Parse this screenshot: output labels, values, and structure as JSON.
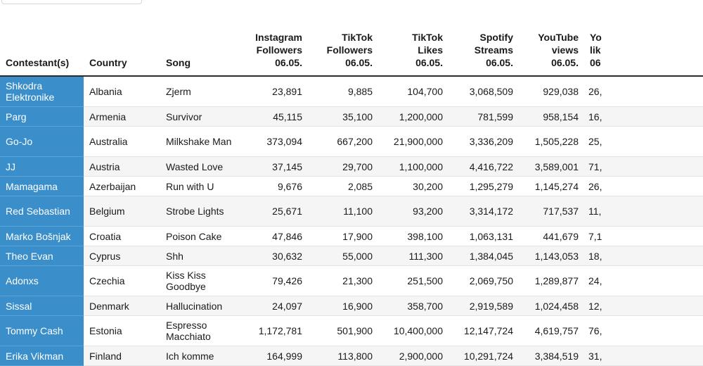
{
  "table": {
    "headers": {
      "contestant": "Contestant(s)",
      "country": "Country",
      "song": "Song",
      "instagram": [
        "Instagram",
        "Followers",
        "06.05."
      ],
      "tiktok_followers": [
        "TikTok",
        "Followers",
        "06.05."
      ],
      "tiktok_likes": [
        "TikTok",
        "Likes",
        "06.05."
      ],
      "spotify": [
        "Spotify",
        "Streams",
        "06.05."
      ],
      "youtube_views": [
        "YouTube",
        "views",
        "06.05."
      ],
      "youtube_likes": [
        "Yo",
        "lik",
        "06"
      ]
    },
    "rows": [
      {
        "contestant": "Shkodra Elektronike",
        "country": "Albania",
        "song": "Zjerm",
        "instagram": "23,891",
        "tiktok_followers": "9,885",
        "tiktok_likes": "104,700",
        "spotify": "3,068,509",
        "youtube_views": "929,038",
        "youtube_likes": "26,"
      },
      {
        "contestant": "Parg",
        "country": "Armenia",
        "song": "Survivor",
        "instagram": "45,115",
        "tiktok_followers": "35,100",
        "tiktok_likes": "1,200,000",
        "spotify": "781,599",
        "youtube_views": "958,154",
        "youtube_likes": "16,"
      },
      {
        "contestant": "Go-Jo",
        "country": "Australia",
        "song": "Milkshake Man",
        "instagram": "373,094",
        "tiktok_followers": "667,200",
        "tiktok_likes": "21,900,000",
        "spotify": "3,336,209",
        "youtube_views": "1,505,228",
        "youtube_likes": "25,"
      },
      {
        "contestant": "JJ",
        "country": "Austria",
        "song": "Wasted Love",
        "instagram": "37,145",
        "tiktok_followers": "29,700",
        "tiktok_likes": "1,100,000",
        "spotify": "4,416,722",
        "youtube_views": "3,589,001",
        "youtube_likes": "71,"
      },
      {
        "contestant": "Mamagama",
        "country": "Azerbaijan",
        "song": "Run with U",
        "instagram": "9,676",
        "tiktok_followers": "2,085",
        "tiktok_likes": "30,200",
        "spotify": "1,295,279",
        "youtube_views": "1,145,274",
        "youtube_likes": "26,"
      },
      {
        "contestant": "Red Sebastian",
        "country": "Belgium",
        "song": "Strobe Lights",
        "instagram": "25,671",
        "tiktok_followers": "11,100",
        "tiktok_likes": "93,200",
        "spotify": "3,314,172",
        "youtube_views": "717,537",
        "youtube_likes": "11,"
      },
      {
        "contestant": "Marko Bošnjak",
        "country": "Croatia",
        "song": "Poison Cake",
        "instagram": "47,846",
        "tiktok_followers": "17,900",
        "tiktok_likes": "398,100",
        "spotify": "1,063,131",
        "youtube_views": "441,679",
        "youtube_likes": "7,1"
      },
      {
        "contestant": "Theo Evan",
        "country": "Cyprus",
        "song": "Shh",
        "instagram": "30,632",
        "tiktok_followers": "55,000",
        "tiktok_likes": "111,300",
        "spotify": "1,384,045",
        "youtube_views": "1,143,053",
        "youtube_likes": "18,"
      },
      {
        "contestant": "Adonxs",
        "country": "Czechia",
        "song": "Kiss Kiss Goodbye",
        "instagram": "79,426",
        "tiktok_followers": "21,300",
        "tiktok_likes": "251,500",
        "spotify": "2,069,750",
        "youtube_views": "1,289,877",
        "youtube_likes": "24,"
      },
      {
        "contestant": "Sissal",
        "country": "Denmark",
        "song": "Hallucination",
        "instagram": "24,097",
        "tiktok_followers": "16,900",
        "tiktok_likes": "358,700",
        "spotify": "2,919,589",
        "youtube_views": "1,024,458",
        "youtube_likes": "12,"
      },
      {
        "contestant": "Tommy Cash",
        "country": "Estonia",
        "song": "Espresso Macchiato",
        "instagram": "1,172,781",
        "tiktok_followers": "501,900",
        "tiktok_likes": "10,400,000",
        "spotify": "12,147,724",
        "youtube_views": "4,619,757",
        "youtube_likes": "76,"
      },
      {
        "contestant": "Erika Vikman",
        "country": "Finland",
        "song": "Ich komme",
        "instagram": "164,999",
        "tiktok_followers": "113,800",
        "tiktok_likes": "2,900,000",
        "spotify": "10,291,724",
        "youtube_views": "3,384,519",
        "youtube_likes": "31,"
      }
    ]
  },
  "colors": {
    "contestant_cell_bg": "#3a8ec9",
    "contestant_cell_text": "#ffffff",
    "zebra_row_bg": "#f5f5f5",
    "header_rule": "#2b2b2b"
  }
}
